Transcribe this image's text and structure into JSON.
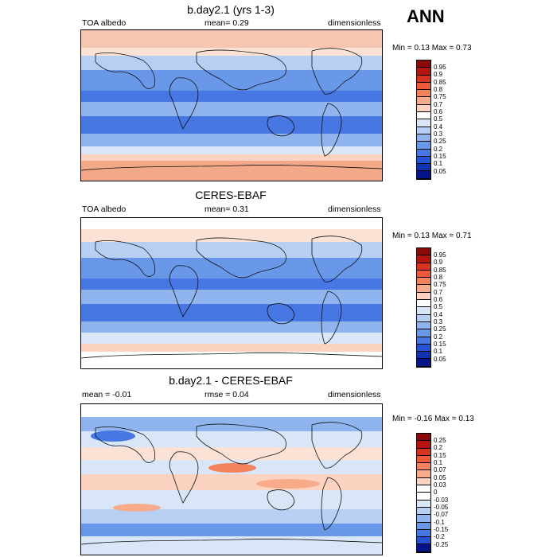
{
  "season": "ANN",
  "panels": [
    {
      "title": "b.day2.1 (yrs 1-3)",
      "left_label": "TOA albedo",
      "mean_label": "mean=   0.29",
      "right_label": "dimensionless",
      "range_label": "Min =   0.13 Max =   0.73",
      "colorbar": {
        "labels": [
          "0.95",
          "0.9",
          "0.85",
          "0.8",
          "0.75",
          "0.7",
          "0.6",
          "0.5",
          "0.4",
          "0.3",
          "0.25",
          "0.2",
          "0.15",
          "0.1",
          "0.05"
        ],
        "colors": [
          "#8b0a0a",
          "#b4160f",
          "#d8331f",
          "#ee5a37",
          "#f4825b",
          "#f8ab8b",
          "#fbd3c0",
          "#ffffff",
          "#d9e6f8",
          "#b6cff3",
          "#8fb4ee",
          "#6a98e9",
          "#4677e2",
          "#2454d4",
          "#0f33b0",
          "#05148a"
        ]
      }
    },
    {
      "title": "CERES-EBAF",
      "left_label": "TOA albedo",
      "mean_label": "mean=   0.31",
      "right_label": "dimensionless",
      "range_label": "Min =   0.13 Max =   0.71",
      "colorbar": {
        "labels": [
          "0.95",
          "0.9",
          "0.85",
          "0.8",
          "0.75",
          "0.7",
          "0.6",
          "0.5",
          "0.4",
          "0.3",
          "0.25",
          "0.2",
          "0.15",
          "0.1",
          "0.05"
        ],
        "colors": [
          "#8b0a0a",
          "#b4160f",
          "#d8331f",
          "#ee5a37",
          "#f4825b",
          "#f8ab8b",
          "#fbd3c0",
          "#ffffff",
          "#d9e6f8",
          "#b6cff3",
          "#8fb4ee",
          "#6a98e9",
          "#4677e2",
          "#2454d4",
          "#0f33b0",
          "#05148a"
        ]
      }
    },
    {
      "title": "b.day2.1 - CERES-EBAF",
      "left_label": "mean =   -0.01",
      "mean_label": "rmse =    0.04",
      "right_label": "dimensionless",
      "range_label": "Min =  -0.16 Max =   0.13",
      "colorbar": {
        "labels": [
          "0.25",
          "0.2",
          "0.15",
          "0.1",
          "0.07",
          "0.05",
          "0.03",
          "0",
          "-0.03",
          "-0.05",
          "-0.07",
          "-0.1",
          "-0.15",
          "-0.2",
          "-0.25"
        ],
        "colors": [
          "#8b0a0a",
          "#b4160f",
          "#d8331f",
          "#ee5a37",
          "#f4825b",
          "#f8ab8b",
          "#fbd3c0",
          "#ffffff",
          "#ffffff",
          "#d9e6f8",
          "#b6cff3",
          "#8fb4ee",
          "#6a98e9",
          "#4677e2",
          "#2454d4",
          "#05148a"
        ]
      }
    }
  ]
}
